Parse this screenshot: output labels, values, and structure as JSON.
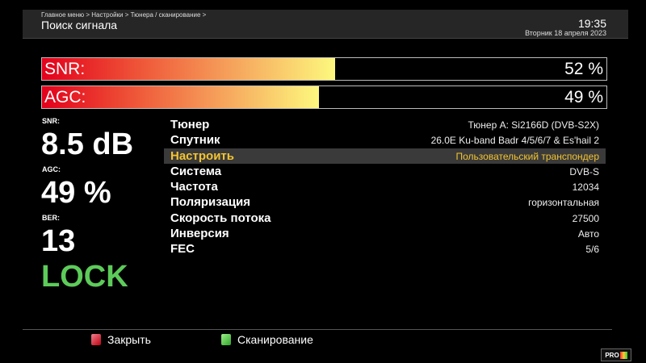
{
  "header": {
    "breadcrumb": "Главное меню > Настройки > Тюнера / сканирование >",
    "title": "Поиск сигнала",
    "time": "19:35",
    "date": "Вторник 18 апреля 2023"
  },
  "bars": [
    {
      "label": "SNR:",
      "value": "52 %",
      "percent": 52
    },
    {
      "label": "AGC:",
      "value": "49 %",
      "percent": 49
    }
  ],
  "stats": {
    "snr_label": "SNR:",
    "snr_value": "8.5 dB",
    "agc_label": "AGC:",
    "agc_value": "49 %",
    "ber_label": "BER:",
    "ber_value": "13",
    "status": "LOCK"
  },
  "params": [
    {
      "key": "Тюнер",
      "value": "Тюнер A: Si2166D (DVB-S2X)"
    },
    {
      "key": "Спутник",
      "value": "26.0E Ku-band Badr 4/5/6/7 & Es'hail 2"
    },
    {
      "key": "Настроить",
      "value": "Пользовательский транспондер",
      "selected": true
    },
    {
      "key": "Система",
      "value": "DVB-S"
    },
    {
      "key": "Частота",
      "value": "12034"
    },
    {
      "key": "Поляризация",
      "value": "горизонтальная"
    },
    {
      "key": "Скорость потока",
      "value": "27500"
    },
    {
      "key": "Инверсия",
      "value": "Авто"
    },
    {
      "key": "FEC",
      "value": "5/6"
    }
  ],
  "footer": {
    "red_label": "Закрыть",
    "green_label": "Сканирование"
  },
  "logo": "PRO TV",
  "colors": {
    "accent": "#f3c431",
    "lock": "#5dcb5a"
  }
}
